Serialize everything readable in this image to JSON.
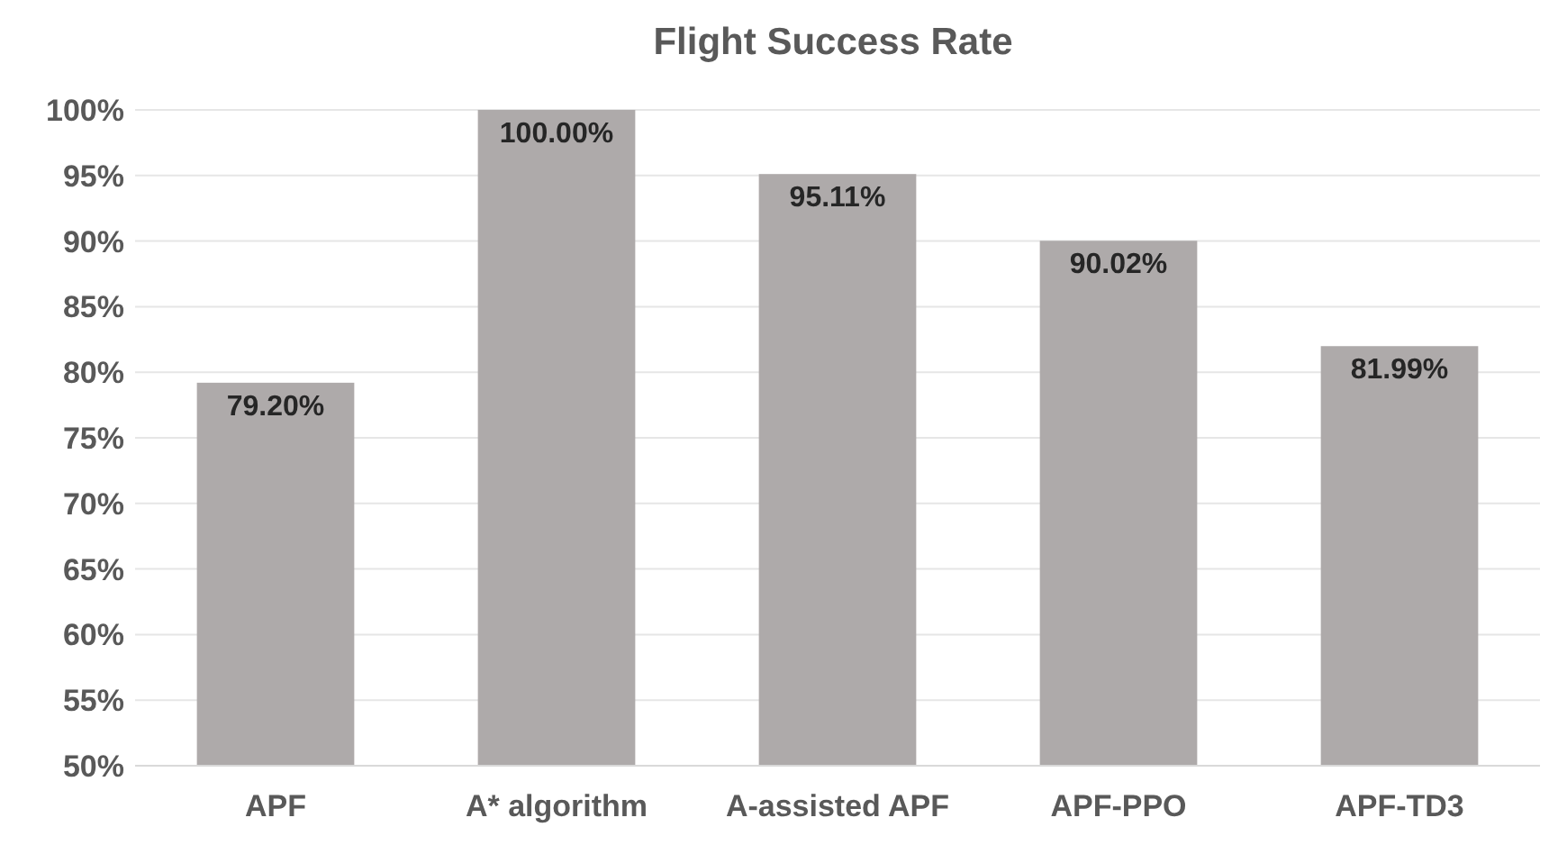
{
  "chart_data": {
    "type": "bar",
    "title": "Flight Success Rate",
    "categories": [
      "APF",
      "A* algorithm",
      "A-assisted APF",
      "APF-PPO",
      "APF-TD3"
    ],
    "values": [
      79.2,
      100,
      95.11,
      90.02,
      81.99
    ],
    "value_labels": [
      "79.20%",
      "100.00%",
      "95.11%",
      "90.02%",
      "81.99%"
    ],
    "color": "#aeaaaa",
    "ylim": [
      50,
      100
    ],
    "yticks": [
      {
        "value": 50,
        "label": "50%"
      },
      {
        "value": 55,
        "label": "55%"
      },
      {
        "value": 60,
        "label": "60%"
      },
      {
        "value": 65,
        "label": "65%"
      },
      {
        "value": 70,
        "label": "70%"
      },
      {
        "value": 75,
        "label": "75%"
      },
      {
        "value": 80,
        "label": "80%"
      },
      {
        "value": 85,
        "label": "85%"
      },
      {
        "value": 90,
        "label": "90%"
      },
      {
        "value": 95,
        "label": "95%"
      },
      {
        "value": 100,
        "label": "100%"
      }
    ],
    "grid": "y"
  }
}
